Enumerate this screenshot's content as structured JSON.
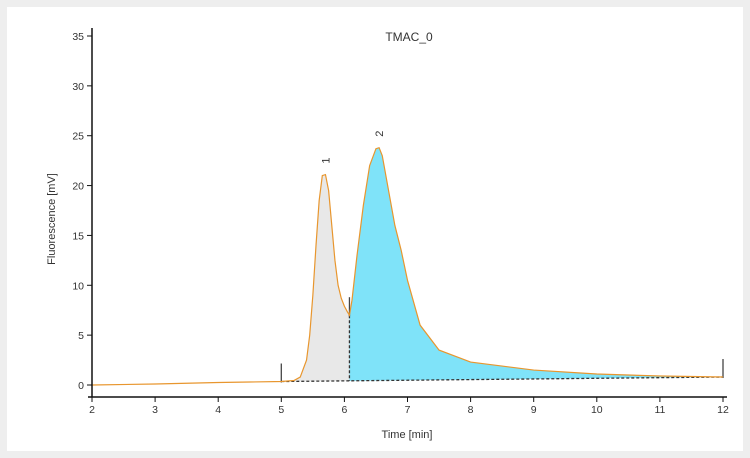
{
  "chart_data": {
    "type": "area",
    "title": "TMAC_0",
    "xlabel": "Time [min]",
    "ylabel": "Fluorescence [mV]",
    "xlim": [
      2,
      12
    ],
    "ylim": [
      0,
      35
    ],
    "x_ticks": [
      "2",
      "3",
      "4",
      "5",
      "6",
      "7",
      "8",
      "9",
      "10",
      "11",
      "12"
    ],
    "y_ticks": [
      "0",
      "5",
      "10",
      "15",
      "20",
      "25",
      "30",
      "35"
    ],
    "grid": false,
    "colors": {
      "trace": "#e8962e",
      "peak1_fill": "#e8e8e8",
      "peak2_fill": "#7fe3f9",
      "baseline": "#333333"
    },
    "series": [
      {
        "x": [
          2.0,
          3.0,
          4.0,
          4.5,
          5.0,
          5.2,
          5.3,
          5.4,
          5.45,
          5.5,
          5.55,
          5.6,
          5.65,
          5.7,
          5.75,
          5.8,
          5.85,
          5.9,
          5.95,
          6.0,
          6.05,
          6.08,
          6.12,
          6.2,
          6.3,
          6.4,
          6.5,
          6.55,
          6.6,
          6.7,
          6.8,
          6.9,
          7.0,
          7.2,
          7.5,
          8.0,
          9.0,
          10.0,
          11.0,
          12.0
        ],
        "y": [
          0.0,
          0.1,
          0.25,
          0.3,
          0.35,
          0.45,
          0.8,
          2.5,
          5.0,
          9.0,
          14.0,
          18.5,
          21.0,
          21.1,
          19.5,
          16.0,
          12.5,
          10.0,
          8.7,
          7.9,
          7.3,
          7.0,
          8.5,
          13.0,
          18.0,
          22.0,
          23.7,
          23.8,
          23.0,
          19.5,
          16.0,
          13.5,
          10.5,
          6.0,
          3.5,
          2.3,
          1.5,
          1.1,
          0.9,
          0.8
        ]
      }
    ],
    "peaks": [
      {
        "label": "1",
        "x": 5.7,
        "y": 21.1,
        "start": 5.0,
        "end": 6.08
      },
      {
        "label": "2",
        "x": 6.55,
        "y": 23.8,
        "start": 6.08,
        "end": 12.0
      }
    ]
  }
}
